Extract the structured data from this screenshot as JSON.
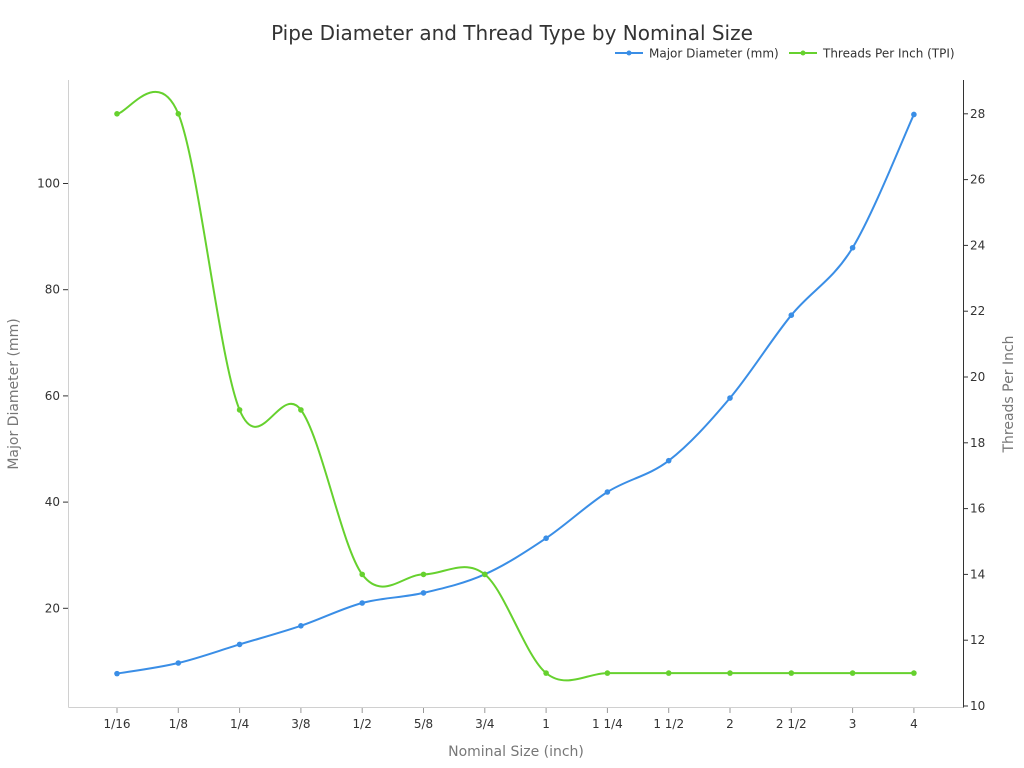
{
  "chart_data": {
    "type": "line",
    "title": "Pipe Diameter and Thread Type by Nominal Size",
    "xlabel": "Nominal Size (inch)",
    "ylabel": "Major Diameter (mm)",
    "y2label": "Threads Per Inch",
    "categories": [
      "1/16",
      "1/8",
      "1/4",
      "3/8",
      "1/2",
      "5/8",
      "3/4",
      "1",
      "1 1/4",
      "1 1/2",
      "2",
      "2 1/2",
      "3",
      "4"
    ],
    "series": [
      {
        "name": "Major Diameter (mm)",
        "axis": "left",
        "color": "#3a8ee6",
        "values": [
          7.7,
          9.7,
          13.2,
          16.7,
          21.0,
          22.9,
          26.4,
          33.2,
          41.9,
          47.8,
          59.6,
          75.2,
          87.9,
          113.0
        ]
      },
      {
        "name": "Threads Per Inch (TPI)",
        "axis": "right",
        "color": "#66d12e",
        "values": [
          28,
          28,
          19,
          19,
          14,
          14,
          14,
          11,
          11,
          11,
          11,
          11,
          11,
          11
        ]
      }
    ],
    "y_ticks": [
      20,
      40,
      60,
      80,
      100
    ],
    "y2_ticks": [
      10,
      12,
      14,
      16,
      18,
      20,
      22,
      24,
      26,
      28
    ],
    "ylim": [
      0,
      118.5
    ],
    "y2lim": [
      10,
      29
    ],
    "grid": false,
    "legend_position": "top-right"
  },
  "legend": {
    "items": [
      {
        "label": "Major Diameter (mm)",
        "color": "#3a8ee6"
      },
      {
        "label": "Threads Per Inch (TPI)",
        "color": "#66d12e"
      }
    ]
  }
}
